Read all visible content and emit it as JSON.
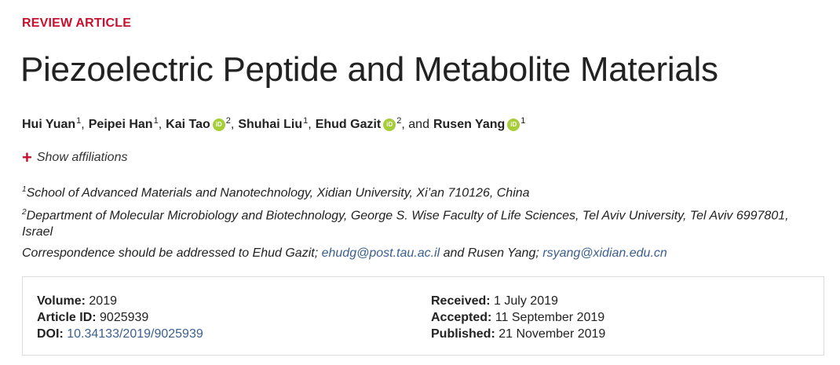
{
  "article_type": "REVIEW ARTICLE",
  "title": "Piezoelectric Peptide and Metabolite Materials",
  "authors": [
    {
      "name": "Hui Yuan",
      "aff": "1",
      "orcid": false,
      "sep": ","
    },
    {
      "name": "Peipei Han",
      "aff": "1",
      "orcid": false,
      "sep": ","
    },
    {
      "name": "Kai Tao",
      "aff": "2",
      "orcid": true,
      "sep": ","
    },
    {
      "name": "Shuhai Liu",
      "aff": "1",
      "orcid": false,
      "sep": ","
    },
    {
      "name": "Ehud Gazit",
      "aff": "2",
      "orcid": true,
      "sep": ", and"
    },
    {
      "name": "Rusen Yang",
      "aff": "1",
      "orcid": true,
      "sep": ""
    }
  ],
  "orcid_label": "iD",
  "show_affiliations": "Show affiliations",
  "affiliations": [
    {
      "num": "1",
      "text": "School of Advanced Materials and Nanotechnology, Xidian University, Xi’an 710126, China"
    },
    {
      "num": "2",
      "text": "Department of Molecular Microbiology and Biotechnology, George S. Wise Faculty of Life Sciences, Tel Aviv University, Tel Aviv 6997801, Israel"
    }
  ],
  "correspondence": {
    "prefix": "Correspondence should be addressed to Ehud Gazit;",
    "email1": "ehudg@post.tau.ac.il",
    "middle": "and Rusen Yang;",
    "email2": "rsyang@xidian.edu.cn"
  },
  "meta": {
    "volume_label": "Volume:",
    "volume": "2019",
    "article_id_label": "Article ID:",
    "article_id": "9025939",
    "doi_label": "DOI:",
    "doi": "10.34133/2019/9025939",
    "received_label": "Received:",
    "received": "1 July 2019",
    "accepted_label": "Accepted:",
    "accepted": "11 September 2019",
    "published_label": "Published:",
    "published": "21 November 2019"
  },
  "colors": {
    "accent": "#c8102e",
    "link": "#3a5f8f",
    "orcid": "#a6ce39"
  }
}
